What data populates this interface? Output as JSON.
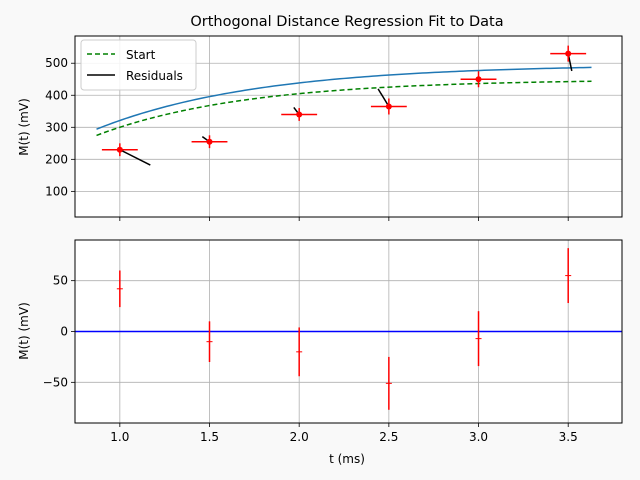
{
  "chart_data": [
    {
      "type": "scatter",
      "title": "Orthogonal Distance Regression Fit to Data",
      "xlabel": "",
      "ylabel": "M(t) (mV)",
      "xlim": [
        0.75,
        3.8
      ],
      "ylim": [
        20,
        585
      ],
      "xticks": [
        1.0,
        1.5,
        2.0,
        2.5,
        3.0,
        3.5
      ],
      "yticks": [
        100,
        200,
        300,
        400,
        500
      ],
      "show_x_tick_labels": false,
      "grid": true,
      "legend": {
        "placement": "top-left",
        "entries": [
          {
            "label": "Start",
            "color": "#008000",
            "style": "dashed"
          },
          {
            "label": "Residuals",
            "color": "#000000",
            "style": "solid"
          }
        ]
      },
      "model": {
        "form": "A*(1-exp(-t/tau))+c",
        "fit": {
          "A": 530,
          "tau": 0.903,
          "c": -33.6
        },
        "start": {
          "A": 500,
          "tau": 0.83,
          "c": -50
        },
        "x_range": [
          0.87,
          3.63
        ]
      },
      "fit_color": "#1f77b4",
      "data_color": "#ff0000",
      "data": [
        {
          "x": 1.0,
          "y": 230,
          "xerr": 0.1,
          "yerr": 20,
          "foot": [
            1.17,
            182
          ]
        },
        {
          "x": 1.5,
          "y": 255,
          "xerr": 0.1,
          "yerr": 20,
          "foot": [
            1.46,
            271
          ]
        },
        {
          "x": 2.0,
          "y": 340,
          "xerr": 0.1,
          "yerr": 20,
          "foot": [
            1.97,
            362
          ]
        },
        {
          "x": 2.5,
          "y": 365,
          "xerr": 0.1,
          "yerr": 25,
          "foot": [
            2.44,
            420
          ]
        },
        {
          "x": 3.0,
          "y": 450,
          "xerr": 0.1,
          "yerr": 25,
          "foot": [
            3.0,
            455
          ]
        },
        {
          "x": 3.5,
          "y": 530,
          "xerr": 0.1,
          "yerr": 25,
          "foot": [
            3.52,
            476
          ]
        }
      ]
    },
    {
      "type": "scatter",
      "title": "",
      "xlabel": "t (ms)",
      "ylabel": "M(t) (mV)",
      "xlim": [
        0.75,
        3.8
      ],
      "ylim": [
        -90,
        90
      ],
      "xticks": [
        1.0,
        1.5,
        2.0,
        2.5,
        3.0,
        3.5
      ],
      "xtick_labels": [
        "1.0",
        "1.5",
        "2.0",
        "2.5",
        "3.0",
        "3.5"
      ],
      "yticks": [
        -50,
        0,
        50
      ],
      "ytick_labels": [
        "−50",
        "0",
        "50"
      ],
      "grid": true,
      "zero_line_color": "#0000ff",
      "data_color": "#ff0000",
      "data": [
        {
          "x": 1.0,
          "y": 42,
          "yerr": 18
        },
        {
          "x": 1.5,
          "y": -10,
          "yerr": 20
        },
        {
          "x": 2.0,
          "y": -20,
          "yerr": 24
        },
        {
          "x": 2.5,
          "y": -51,
          "yerr": 26
        },
        {
          "x": 3.0,
          "y": -7,
          "yerr": 27
        },
        {
          "x": 3.5,
          "y": 55,
          "yerr": 27
        }
      ]
    }
  ]
}
